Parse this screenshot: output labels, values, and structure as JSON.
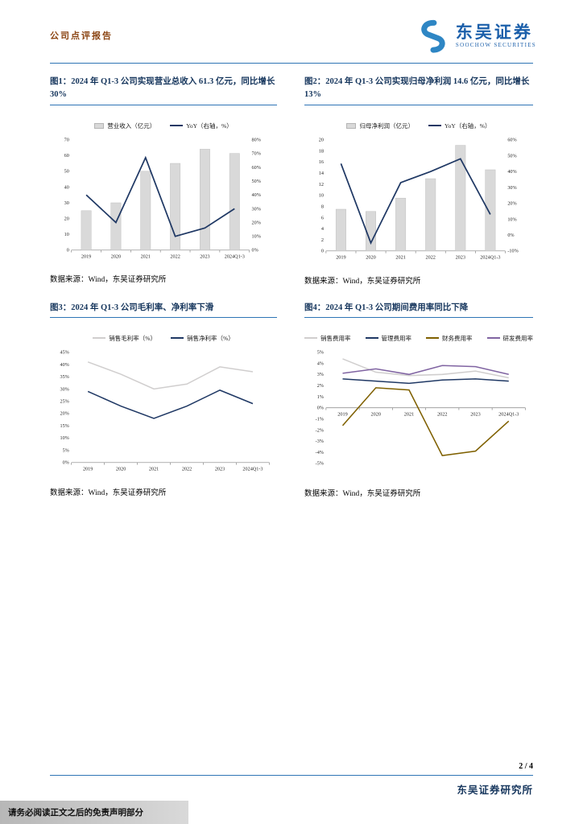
{
  "theme": {
    "accent_blue": "#2E74B5",
    "navy": "#1F3864",
    "brand_blue": "#1B5FAA",
    "report_type_color": "#8B4513"
  },
  "header": {
    "report_type": "公司点评报告",
    "brand_cn": "东吴证券",
    "brand_en": "SOOCHOW SECURITIES"
  },
  "figures": [
    {
      "title": "图1：2024 年 Q1-3 公司实现营业总收入 61.3 亿元，同比增长 30%",
      "source": "数据来源：Wind，东吴证券研究所",
      "chart_data": {
        "type": "bar-line",
        "categories": [
          "2019",
          "2020",
          "2021",
          "2022",
          "2023",
          "2024Q1-3"
        ],
        "bar_series": {
          "name": "营业收入（亿元）",
          "values": [
            25,
            30,
            50,
            55,
            64,
            61.3
          ],
          "color": "#D9D9D9"
        },
        "line_series": {
          "name": "YoY（右轴，%）",
          "values": [
            40,
            20,
            67,
            10,
            16,
            30
          ],
          "color": "#1F3864",
          "axis": "right"
        },
        "left_axis": {
          "min": 0,
          "max": 70,
          "step": 10
        },
        "right_axis": {
          "min": 0,
          "max": 80,
          "step": 10,
          "format": "percent"
        },
        "legend_position": "top",
        "grid": false
      }
    },
    {
      "title": "图2：2024 年 Q1-3 公司实现归母净利润 14.6 亿元，同比增长 13%",
      "source": "数据来源：Wind，东吴证券研究所",
      "chart_data": {
        "type": "bar-line",
        "categories": [
          "2019",
          "2020",
          "2021",
          "2022",
          "2023",
          "2024Q1-3"
        ],
        "bar_series": {
          "name": "归母净利润（亿元）",
          "values": [
            7.5,
            7.1,
            9.5,
            13,
            19,
            14.6
          ],
          "color": "#D9D9D9"
        },
        "line_series": {
          "name": "YoY（右轴，%）",
          "values": [
            45,
            -5,
            33,
            40,
            48,
            13
          ],
          "color": "#1F3864",
          "axis": "right"
        },
        "left_axis": {
          "min": 0,
          "max": 20,
          "step": 2
        },
        "right_axis": {
          "min": -10,
          "max": 60,
          "step": 10,
          "format": "percent"
        },
        "legend_position": "top",
        "grid": false
      }
    },
    {
      "title": "图3：2024 年 Q1-3 公司毛利率、净利率下滑",
      "source": "数据来源：Wind，东吴证券研究所",
      "chart_data": {
        "type": "line",
        "categories": [
          "2019",
          "2020",
          "2021",
          "2022",
          "2023",
          "2024Q1-3"
        ],
        "series": [
          {
            "name": "销售毛利率（%）",
            "values": [
              41,
              36,
              30,
              32,
              39,
              37
            ],
            "color": "#D0CECE"
          },
          {
            "name": "销售净利率（%）",
            "values": [
              29,
              23,
              18,
              23,
              29.5,
              24
            ],
            "color": "#1F3864"
          }
        ],
        "y_axis": {
          "min": 0,
          "max": 45,
          "step": 5,
          "format": "percent"
        },
        "legend_position": "top",
        "grid": false
      }
    },
    {
      "title": "图4：2024 年 Q1-3 公司期间费用率同比下降",
      "source": "数据来源：Wind，东吴证券研究所",
      "chart_data": {
        "type": "line",
        "categories": [
          "2019",
          "2020",
          "2021",
          "2022",
          "2023",
          "2024Q1-3"
        ],
        "series": [
          {
            "name": "销售费用率",
            "values": [
              4.4,
              3.2,
              2.9,
              3.0,
              3.3,
              2.7
            ],
            "color": "#D0CECE"
          },
          {
            "name": "管理费用率",
            "values": [
              2.6,
              2.4,
              2.2,
              2.5,
              2.6,
              2.4
            ],
            "color": "#1F3864"
          },
          {
            "name": "财务费用率",
            "values": [
              -1.6,
              1.8,
              1.6,
              -4.3,
              -3.9,
              -1.2
            ],
            "color": "#7F6000"
          },
          {
            "name": "研发费用率",
            "values": [
              3.1,
              3.5,
              3.0,
              3.8,
              3.7,
              3.0
            ],
            "color": "#8064A2"
          }
        ],
        "y_axis": {
          "min": -5,
          "max": 5,
          "step": 1,
          "format": "percent"
        },
        "legend_position": "top",
        "grid": false
      }
    }
  ],
  "footer": {
    "page": "2 / 4",
    "institute": "东吴证券研究所",
    "disclaimer": "请务必阅读正文之后的免责声明部分"
  }
}
